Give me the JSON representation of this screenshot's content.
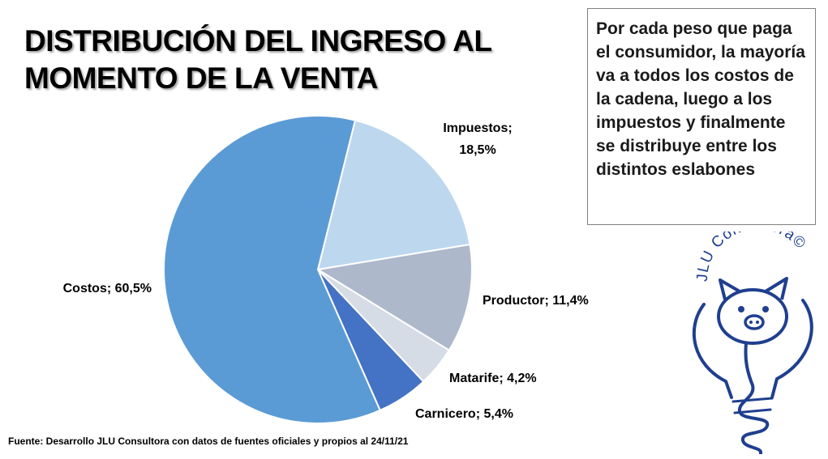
{
  "title": {
    "line1": "DISTRIBUCIÓN DEL INGRESO AL",
    "line2": "MOMENTO DE LA VENTA"
  },
  "note": {
    "text": "Por cada peso que paga el consumidor, la mayoría va a todos los costos de la cadena, luego a los impuestos y finalmente se distribuye entre los distintos eslabones"
  },
  "source": "Fuente: Desarrollo JLU Consultora con datos de fuentes oficiales y propios al 24/11/21",
  "logo": {
    "brand_text": "JLU Consultora©",
    "icon": "pig-lightbulb-logo"
  },
  "chart_data": {
    "type": "pie",
    "title": "DISTRIBUCIÓN DEL INGRESO AL MOMENTO DE LA VENTA",
    "slices": [
      {
        "name": "Impuestos",
        "value": 18.5,
        "label_line1": "Impuestos;",
        "label_line2": "18,5%",
        "color": "#bdd7ee"
      },
      {
        "name": "Productor",
        "value": 11.4,
        "label_line1": "Productor;  11,4%",
        "label_line2": "",
        "color": "#adb9ca"
      },
      {
        "name": "Matarife",
        "value": 4.2,
        "label_line1": "Matarife;  4,2%",
        "label_line2": "",
        "color": "#d6dce5"
      },
      {
        "name": "Carnicero",
        "value": 5.4,
        "label_line1": "Carnicero;  5,4%",
        "label_line2": "",
        "color": "#4472c4"
      },
      {
        "name": "Costos",
        "value": 60.5,
        "label_line1": "Costos;  60,5%",
        "label_line2": "",
        "color": "#5b9bd5"
      }
    ],
    "start_angle_deg": 14,
    "direction": "clockwise"
  }
}
